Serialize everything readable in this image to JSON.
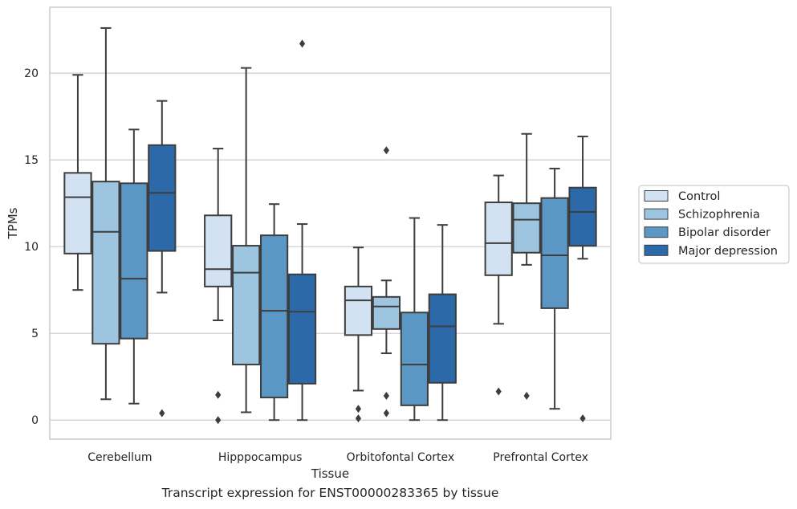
{
  "chart_data": {
    "type": "box",
    "title": "",
    "xlabel": "Tissue",
    "ylabel": "TPMs",
    "ylim": [
      -1.1,
      23.8
    ],
    "yticks": [
      0,
      5,
      10,
      15,
      20
    ],
    "grid": "horizontal",
    "legend_position": "right, outside plot",
    "categories": [
      "Cerebellum",
      "Hipppocampus",
      "Orbitofontal Cortex",
      "Prefrontal Cortex"
    ],
    "series": [
      {
        "name": "Control",
        "color": "#d3e2f2",
        "boxes": [
          {
            "whisker_low": 7.5,
            "q1": 9.6,
            "median": 12.85,
            "q3": 14.25,
            "whisker_high": 19.9,
            "outliers": []
          },
          {
            "whisker_low": 5.75,
            "q1": 7.7,
            "median": 8.7,
            "q3": 11.8,
            "whisker_high": 15.65,
            "outliers": [
              1.45,
              0.0
            ]
          },
          {
            "whisker_low": 1.7,
            "q1": 4.9,
            "median": 6.9,
            "q3": 7.7,
            "whisker_high": 9.95,
            "outliers": [
              0.65,
              0.1
            ]
          },
          {
            "whisker_low": 5.55,
            "q1": 8.35,
            "median": 10.2,
            "q3": 12.55,
            "whisker_high": 14.1,
            "outliers": [
              1.65
            ]
          }
        ]
      },
      {
        "name": "Schizophrenia",
        "color": "#9dc5df",
        "boxes": [
          {
            "whisker_low": 1.2,
            "q1": 4.4,
            "median": 10.85,
            "q3": 13.75,
            "whisker_high": 22.6,
            "outliers": []
          },
          {
            "whisker_low": 0.45,
            "q1": 3.2,
            "median": 8.5,
            "q3": 10.05,
            "whisker_high": 20.3,
            "outliers": []
          },
          {
            "whisker_low": 3.85,
            "q1": 5.25,
            "median": 6.55,
            "q3": 7.1,
            "whisker_high": 8.05,
            "outliers": [
              15.55,
              1.4,
              0.4
            ]
          },
          {
            "whisker_low": 8.95,
            "q1": 9.65,
            "median": 11.55,
            "q3": 12.5,
            "whisker_high": 16.5,
            "outliers": [
              1.4
            ]
          }
        ]
      },
      {
        "name": "Bipolar disorder",
        "color": "#5b97c4",
        "boxes": [
          {
            "whisker_low": 0.95,
            "q1": 4.7,
            "median": 8.15,
            "q3": 13.65,
            "whisker_high": 16.75,
            "outliers": []
          },
          {
            "whisker_low": 0.0,
            "q1": 1.3,
            "median": 6.3,
            "q3": 10.65,
            "whisker_high": 12.45,
            "outliers": []
          },
          {
            "whisker_low": 0.0,
            "q1": 0.85,
            "median": 3.2,
            "q3": 6.2,
            "whisker_high": 11.65,
            "outliers": []
          },
          {
            "whisker_low": 0.65,
            "q1": 6.45,
            "median": 9.5,
            "q3": 12.8,
            "whisker_high": 14.5,
            "outliers": []
          }
        ]
      },
      {
        "name": "Major depression",
        "color": "#2b69a8",
        "boxes": [
          {
            "whisker_low": 7.35,
            "q1": 9.75,
            "median": 13.1,
            "q3": 15.85,
            "whisker_high": 18.4,
            "outliers": [
              0.4
            ]
          },
          {
            "whisker_low": 0.0,
            "q1": 2.1,
            "median": 6.25,
            "q3": 8.4,
            "whisker_high": 11.3,
            "outliers": [
              21.7
            ]
          },
          {
            "whisker_low": 0.0,
            "q1": 2.15,
            "median": 5.4,
            "q3": 7.25,
            "whisker_high": 11.25,
            "outliers": []
          },
          {
            "whisker_low": 9.3,
            "q1": 10.05,
            "median": 12.0,
            "q3": 13.4,
            "whisker_high": 16.35,
            "outliers": [
              0.1
            ]
          }
        ]
      }
    ]
  },
  "caption": "Transcript expression for ENST00000283365 by tissue"
}
